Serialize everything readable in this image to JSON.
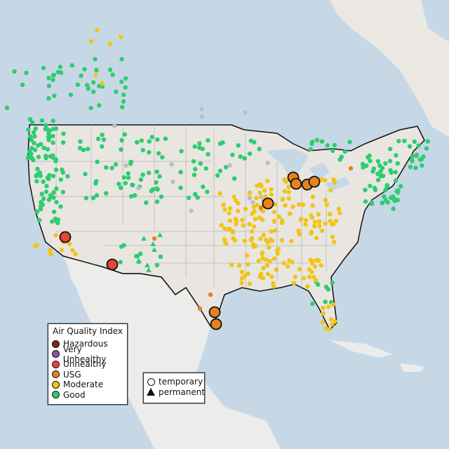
{
  "legend": {
    "title": "Air Quality Index",
    "items": [
      {
        "label": "Hazardous",
        "color": "#7a2a1c"
      },
      {
        "label": "Very Unhealthy",
        "color": "#8a54a8"
      },
      {
        "label": "Unhealthy",
        "color": "#e8443a"
      },
      {
        "label": "USG",
        "color": "#e8821e"
      },
      {
        "label": "Moderate",
        "color": "#f0c419"
      },
      {
        "label": "Good",
        "color": "#2ecc71"
      }
    ]
  },
  "shape_legend": {
    "items": [
      {
        "label": "temporary",
        "shape": "circle"
      },
      {
        "label": "permanent",
        "shape": "triangle"
      }
    ]
  },
  "colors": {
    "water": "#c6d8e6",
    "land": "#eae7e2",
    "mexico_land": "#ececea",
    "border": "#111111",
    "state_line": "#b4b4b4",
    "unknown_station": "#bdbdbd"
  }
}
